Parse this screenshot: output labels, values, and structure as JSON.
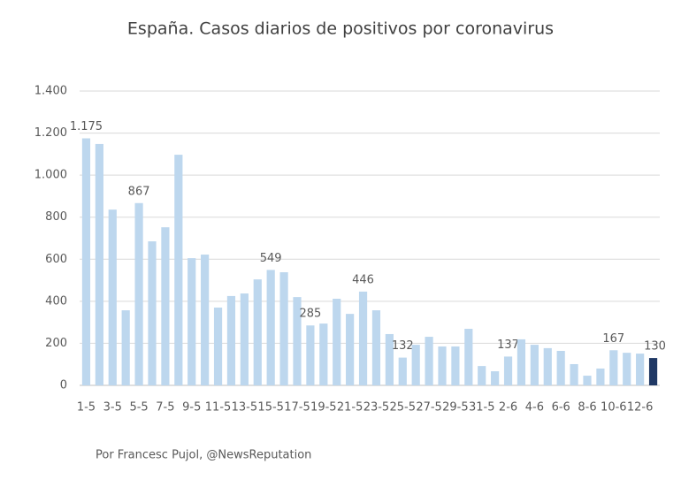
{
  "chart_data": {
    "type": "bar",
    "title": "España. Casos diarios de positivos por coronavirus",
    "footer": "Por Francesc Pujol, @NewsReputation",
    "categories": [
      "1-5",
      null,
      "3-5",
      null,
      "5-5",
      null,
      "7-5",
      null,
      "9-5",
      null,
      "11-5",
      null,
      "13-5",
      null,
      "15-5",
      null,
      "17-5",
      null,
      "19-5",
      null,
      "21-5",
      null,
      "23-5",
      null,
      "25-5",
      null,
      "27-5",
      null,
      "29-5",
      null,
      "31-5",
      null,
      "2-6",
      null,
      "4-6",
      null,
      "6-6",
      null,
      "8-6",
      null,
      "10-6",
      null,
      "12-6",
      null
    ],
    "values": [
      1175,
      1148,
      836,
      357,
      867,
      685,
      752,
      1097,
      605,
      622,
      370,
      425,
      437,
      504,
      549,
      538,
      420,
      285,
      294,
      412,
      340,
      446,
      357,
      244,
      132,
      193,
      231,
      185,
      185,
      269,
      92,
      67,
      137,
      219,
      193,
      177,
      164,
      101,
      46,
      80,
      167,
      155,
      151,
      130
    ],
    "value_labels": [
      "1.175",
      null,
      null,
      null,
      "867",
      null,
      null,
      null,
      null,
      null,
      null,
      null,
      null,
      null,
      "549",
      null,
      null,
      "285",
      null,
      null,
      null,
      "446",
      null,
      null,
      "132",
      null,
      null,
      null,
      null,
      null,
      null,
      null,
      "137",
      null,
      null,
      null,
      null,
      null,
      null,
      null,
      "167",
      null,
      null,
      "130"
    ],
    "colors": [
      "#bdd7ee",
      "#bdd7ee",
      "#bdd7ee",
      "#bdd7ee",
      "#bdd7ee",
      "#bdd7ee",
      "#bdd7ee",
      "#bdd7ee",
      "#bdd7ee",
      "#bdd7ee",
      "#bdd7ee",
      "#bdd7ee",
      "#bdd7ee",
      "#bdd7ee",
      "#bdd7ee",
      "#bdd7ee",
      "#bdd7ee",
      "#bdd7ee",
      "#bdd7ee",
      "#bdd7ee",
      "#bdd7ee",
      "#bdd7ee",
      "#bdd7ee",
      "#bdd7ee",
      "#bdd7ee",
      "#bdd7ee",
      "#bdd7ee",
      "#bdd7ee",
      "#bdd7ee",
      "#bdd7ee",
      "#bdd7ee",
      "#bdd7ee",
      "#bdd7ee",
      "#bdd7ee",
      "#bdd7ee",
      "#bdd7ee",
      "#bdd7ee",
      "#bdd7ee",
      "#bdd7ee",
      "#bdd7ee",
      "#bdd7ee",
      "#bdd7ee",
      "#bdd7ee",
      "#1f3864"
    ],
    "ylim": [
      0,
      1400
    ],
    "yticks": [
      0,
      200,
      400,
      600,
      800,
      {
        "value": 1000,
        "label": "1.000"
      },
      {
        "value": 1200,
        "label": "1.200"
      },
      {
        "value": 1400,
        "label": "1.400"
      }
    ],
    "grid": true
  }
}
